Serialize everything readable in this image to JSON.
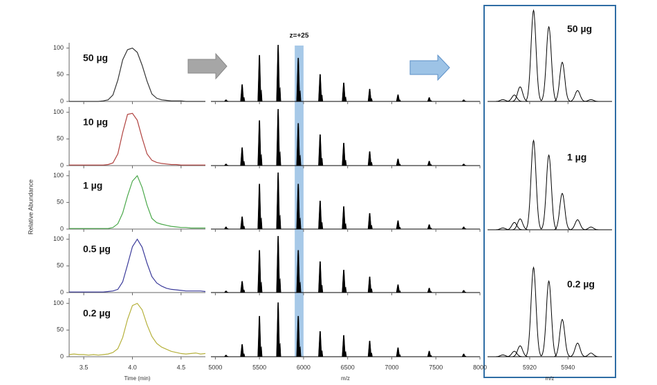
{
  "chart_data": [
    {
      "type": "line",
      "xlabel": "Time (min)",
      "ylabel": "Relative Abundance",
      "x": [
        3.35,
        3.4,
        3.45,
        3.5,
        3.55,
        3.6,
        3.65,
        3.7,
        3.75,
        3.8,
        3.85,
        3.9,
        3.95,
        4.0,
        4.05,
        4.1,
        4.15,
        4.2,
        4.25,
        4.3,
        4.35,
        4.4,
        4.45,
        4.5,
        4.55,
        4.6,
        4.65,
        4.7,
        4.75
      ],
      "xlim": [
        3.35,
        4.75
      ],
      "xticks": [
        3.5,
        {
          "value": 4,
          "label": "4.0"
        },
        4.5
      ],
      "ylim": [
        0,
        110
      ],
      "yticks": [
        0,
        50,
        100
      ],
      "series": [
        {
          "name": "50 µg",
          "color": "#333333",
          "values": [
            0,
            0,
            0,
            0,
            0,
            0,
            0,
            1,
            3,
            12,
            40,
            78,
            97,
            100,
            92,
            68,
            38,
            14,
            6,
            3,
            2,
            1,
            1,
            1,
            0,
            0,
            0,
            0,
            0
          ]
        },
        {
          "name": "10 µg",
          "color": "#b0413e",
          "values": [
            1,
            1,
            1,
            1,
            1,
            1,
            1,
            1,
            2,
            5,
            22,
            62,
            96,
            98,
            85,
            52,
            22,
            10,
            6,
            4,
            3,
            2,
            2,
            1,
            1,
            1,
            1,
            1,
            1
          ]
        },
        {
          "name": "1 µg",
          "color": "#4aa84a",
          "values": [
            1,
            1,
            1,
            1,
            1,
            1,
            1,
            1,
            1,
            3,
            10,
            30,
            62,
            90,
            100,
            78,
            45,
            20,
            12,
            9,
            7,
            5,
            4,
            3,
            3,
            2,
            2,
            2,
            2
          ]
        },
        {
          "name": "0.5 µg",
          "color": "#3a3a9a",
          "values": [
            1,
            1,
            1,
            1,
            1,
            1,
            1,
            1,
            2,
            3,
            6,
            20,
            52,
            86,
            100,
            85,
            55,
            30,
            18,
            12,
            8,
            6,
            5,
            4,
            3,
            3,
            3,
            3,
            2
          ]
        },
        {
          "name": "0.2 µg",
          "color": "#b5b03a",
          "values": [
            4,
            5,
            4,
            4,
            3,
            4,
            3,
            4,
            5,
            8,
            15,
            36,
            70,
            96,
            100,
            88,
            60,
            38,
            25,
            18,
            14,
            10,
            8,
            6,
            5,
            6,
            7,
            5,
            6
          ]
        }
      ]
    },
    {
      "type": "peaks",
      "xlabel": "m/z",
      "annotation": "z=+25",
      "highlight": [
        5900,
        6000
      ],
      "highlight_color": "#9dc3e6",
      "x": [
        5121,
        5304,
        5500,
        5712,
        5940,
        6188,
        6456,
        6750,
        7071,
        7425,
        7816
      ],
      "xlim": [
        4950,
        8000
      ],
      "xticks": [
        5000,
        5500,
        6000,
        6500,
        7000,
        7500,
        8000
      ],
      "ylim": [
        0,
        104
      ],
      "color": "#000000",
      "series": [
        {
          "values": [
            3,
            30,
            82,
            100,
            77,
            48,
            33,
            22,
            12,
            7,
            3
          ]
        },
        {
          "values": [
            3,
            32,
            80,
            100,
            75,
            55,
            40,
            25,
            12,
            8,
            3
          ]
        },
        {
          "values": [
            4,
            22,
            80,
            100,
            80,
            50,
            40,
            28,
            15,
            8,
            4
          ]
        },
        {
          "values": [
            3,
            20,
            75,
            100,
            75,
            55,
            40,
            28,
            14,
            8,
            4
          ]
        },
        {
          "values": [
            3,
            22,
            72,
            96,
            72,
            45,
            38,
            28,
            16,
            10,
            5
          ]
        }
      ]
    },
    {
      "type": "peaks",
      "xlabel": "m/z",
      "x": [
        5906,
        5912,
        5915,
        5922,
        5930,
        5937,
        5945,
        5952
      ],
      "xlim": [
        5898,
        5963
      ],
      "xticks": [
        5920,
        5940
      ],
      "ylim": [
        0,
        100
      ],
      "color": "#000000",
      "series": [
        {
          "name": "50 µg",
          "values": [
            2,
            7,
            16,
            100,
            82,
            43,
            12,
            2
          ]
        },
        {
          "name": "1 µg",
          "values": [
            2,
            8,
            12,
            98,
            82,
            40,
            11,
            3
          ]
        },
        {
          "name": "0.2 µg",
          "values": [
            2,
            6,
            12,
            98,
            83,
            41,
            15,
            4
          ]
        }
      ]
    }
  ]
}
